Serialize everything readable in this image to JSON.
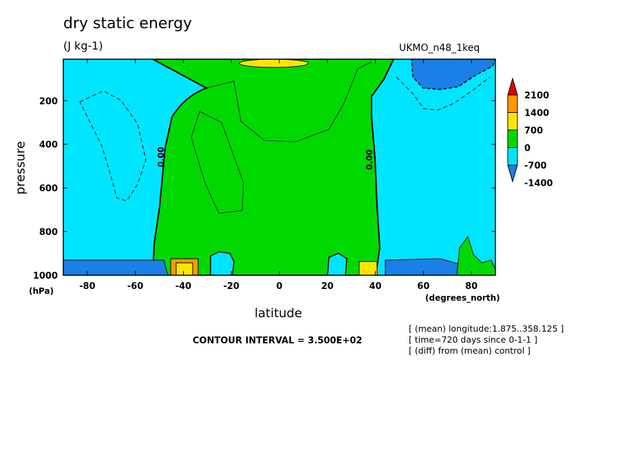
{
  "chart_data": {
    "type": "contour",
    "title": "dry static energy",
    "units": "(J kg-1)",
    "model": "UKMO_n48_1keq",
    "xlabel": "latitude",
    "xunits": "(degrees_north)",
    "ylabel": "pressure",
    "yunits": "(hPa)",
    "xlim": [
      -90,
      90
    ],
    "ylim": [
      1000,
      10
    ],
    "x_ticks": [
      -80,
      -60,
      -40,
      -20,
      0,
      20,
      40,
      60,
      80
    ],
    "y_ticks": [
      200,
      400,
      600,
      800,
      1000
    ],
    "contour_interval": "CONTOUR INTERVAL = 3.500E+02",
    "zero_contour_labels": [
      "0.00",
      "0.00"
    ],
    "colorbar": {
      "levels": [
        -1400,
        -700,
        0,
        700,
        1400,
        2100
      ],
      "level_labels": [
        "2100",
        "1400",
        "700",
        "0",
        "-700",
        "-1400"
      ],
      "colors": [
        "#1a7fe6",
        "#00e5ff",
        "#00d900",
        "#ffe600",
        "#ff9900",
        "#e60000"
      ]
    },
    "notes": [
      "[ (mean) longitude:1.875..358.125 ]",
      "[ time=720 days since 0-1-1 ]",
      "[ (diff) from (mean) control ]"
    ]
  }
}
